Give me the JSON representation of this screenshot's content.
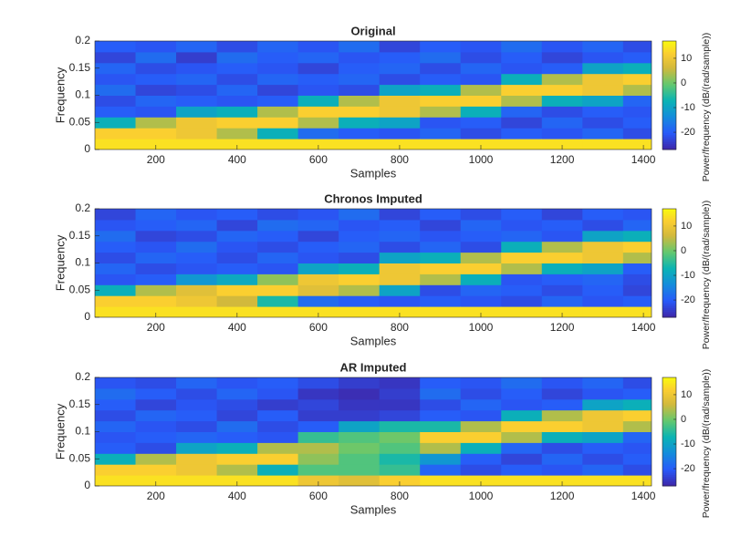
{
  "chart_data": [
    {
      "type": "heatmap",
      "title": "Original",
      "x_label": "Samples",
      "y_label": "Frequency",
      "colorbar_label": "Power/frequency (dB/(rad/sample))",
      "colormap": "parula",
      "x": [
        100,
        200,
        300,
        400,
        500,
        600,
        700,
        800,
        900,
        1000,
        1100,
        1200,
        1300,
        1400
      ],
      "y": [
        0.01,
        0.03,
        0.05,
        0.07,
        0.09,
        0.11,
        0.13,
        0.15,
        0.17,
        0.19
      ],
      "values": [
        [
          14,
          12,
          -8,
          -20,
          -22,
          -18,
          -21,
          -19,
          -23,
          -20
        ],
        [
          14,
          12,
          4,
          -21,
          -19,
          -23,
          -20,
          -22,
          -18,
          -21
        ],
        [
          14,
          10,
          10,
          -10,
          -20,
          -22,
          -19,
          -21,
          -24,
          -19
        ],
        [
          14,
          4,
          12,
          -8,
          -21,
          -19,
          -22,
          -20,
          -18,
          -22
        ],
        [
          14,
          -8,
          12,
          4,
          -20,
          -23,
          -19,
          -21,
          -20,
          -19
        ],
        [
          14,
          -18,
          4,
          12,
          -8,
          -21,
          -20,
          -23,
          -19,
          -21
        ],
        [
          14,
          -20,
          -8,
          12,
          4,
          -22,
          -19,
          -20,
          -21,
          -18
        ],
        [
          14,
          -21,
          -10,
          10,
          10,
          -10,
          -22,
          -19,
          -20,
          -23
        ],
        [
          14,
          -19,
          -21,
          4,
          12,
          -8,
          -20,
          -22,
          -18,
          -20
        ],
        [
          14,
          -22,
          -20,
          -8,
          12,
          4,
          -21,
          -19,
          -22,
          -21
        ],
        [
          14,
          -20,
          -23,
          -19,
          4,
          12,
          -8,
          -21,
          -20,
          -18
        ],
        [
          14,
          -21,
          -19,
          -22,
          -8,
          12,
          4,
          -20,
          -23,
          -21
        ],
        [
          14,
          -19,
          -22,
          -20,
          -10,
          10,
          10,
          -10,
          -21,
          -19
        ],
        [
          14,
          -22,
          -20,
          -21,
          -19,
          4,
          12,
          -8,
          -20,
          -22
        ]
      ],
      "xlim": [
        50,
        1420
      ],
      "ylim": [
        0,
        0.2
      ],
      "xticks": [
        200,
        400,
        600,
        800,
        1000,
        1200,
        1400
      ],
      "yticks": [
        0,
        0.05,
        0.1,
        0.15,
        0.2
      ],
      "clim": [
        -27,
        17
      ],
      "cticks": [
        -20,
        -10,
        0,
        10
      ]
    },
    {
      "type": "heatmap",
      "title": "Chronos Imputed",
      "x_label": "Samples",
      "y_label": "Frequency",
      "colorbar_label": "Power/frequency (dB/(rad/sample))",
      "colormap": "parula",
      "x": [
        100,
        200,
        300,
        400,
        500,
        600,
        700,
        800,
        900,
        1000,
        1100,
        1200,
        1300,
        1400
      ],
      "y": [
        0.01,
        0.03,
        0.05,
        0.07,
        0.09,
        0.11,
        0.13,
        0.15,
        0.17,
        0.19
      ],
      "values": [
        [
          14,
          12,
          -8,
          -21,
          -19,
          -22,
          -20,
          -18,
          -21,
          -23
        ],
        [
          14,
          12,
          4,
          -20,
          -22,
          -19,
          -21,
          -23,
          -20,
          -19
        ],
        [
          14,
          10,
          8,
          -12,
          -21,
          -20,
          -18,
          -22,
          -19,
          -21
        ],
        [
          14,
          6,
          12,
          -9,
          -20,
          -22,
          -21,
          -19,
          -23,
          -20
        ],
        [
          14,
          -6,
          12,
          2,
          -21,
          -19,
          -22,
          -20,
          -18,
          -22
        ],
        [
          14,
          -18,
          8,
          10,
          -10,
          -21,
          -20,
          -23,
          -19,
          -21
        ],
        [
          14,
          -20,
          4,
          12,
          -8,
          -22,
          -19,
          -20,
          -21,
          -18
        ],
        [
          14,
          -21,
          -10,
          10,
          10,
          -10,
          -22,
          -19,
          -20,
          -23
        ],
        [
          14,
          -20,
          -22,
          4,
          12,
          -8,
          -19,
          -21,
          -23,
          -20
        ],
        [
          14,
          -21,
          -19,
          -8,
          12,
          4,
          -22,
          -20,
          -19,
          -22
        ],
        [
          14,
          -22,
          -20,
          -21,
          4,
          12,
          -8,
          -19,
          -21,
          -20
        ],
        [
          14,
          -19,
          -22,
          -20,
          -8,
          12,
          4,
          -21,
          -20,
          -23
        ],
        [
          14,
          -21,
          -20,
          -19,
          -10,
          10,
          10,
          -10,
          -22,
          -20
        ],
        [
          14,
          -20,
          -23,
          -22,
          -20,
          4,
          12,
          -8,
          -19,
          -21
        ]
      ],
      "xlim": [
        50,
        1420
      ],
      "ylim": [
        0,
        0.2
      ],
      "xticks": [
        200,
        400,
        600,
        800,
        1000,
        1200,
        1400
      ],
      "yticks": [
        0,
        0.05,
        0.1,
        0.15,
        0.2
      ],
      "clim": [
        -27,
        17
      ],
      "cticks": [
        -20,
        -10,
        0,
        10
      ]
    },
    {
      "type": "heatmap",
      "title": "AR Imputed",
      "x_label": "Samples",
      "y_label": "Frequency",
      "colorbar_label": "Power/frequency (dB/(rad/sample))",
      "colormap": "parula",
      "x": [
        100,
        200,
        300,
        400,
        500,
        600,
        700,
        800,
        900,
        1000,
        1100,
        1200,
        1300,
        1400
      ],
      "y": [
        0.01,
        0.03,
        0.05,
        0.07,
        0.09,
        0.11,
        0.13,
        0.15,
        0.17,
        0.19
      ],
      "values": [
        [
          14,
          12,
          -8,
          -20,
          -21,
          -19,
          -22,
          -20,
          -18,
          -21
        ],
        [
          14,
          12,
          4,
          -22,
          -20,
          -21,
          -19,
          -23,
          -20,
          -22
        ],
        [
          14,
          10,
          10,
          -10,
          -19,
          -22,
          -20,
          -21,
          -22,
          -19
        ],
        [
          14,
          4,
          12,
          -8,
          -20,
          -18,
          -23,
          -22,
          -19,
          -21
        ],
        [
          14,
          -8,
          12,
          4,
          -21,
          -22,
          -20,
          -24,
          -21,
          -20
        ],
        [
          10,
          -2,
          2,
          4,
          -4,
          -20,
          -24,
          -23,
          -25,
          -22
        ],
        [
          8,
          -2,
          -2,
          0,
          -2,
          -10,
          -24,
          -25,
          -26,
          -24
        ],
        [
          12,
          -4,
          -6,
          -2,
          0,
          -6,
          -23,
          -25,
          -24,
          -25
        ],
        [
          14,
          -19,
          -12,
          4,
          12,
          -6,
          -20,
          -22,
          -18,
          -20
        ],
        [
          14,
          -22,
          -20,
          -8,
          12,
          4,
          -21,
          -19,
          -22,
          -21
        ],
        [
          14,
          -20,
          -23,
          -19,
          4,
          12,
          -8,
          -21,
          -20,
          -18
        ],
        [
          14,
          -21,
          -19,
          -22,
          -8,
          12,
          4,
          -20,
          -23,
          -21
        ],
        [
          14,
          -19,
          -22,
          -20,
          -10,
          10,
          10,
          -10,
          -21,
          -19
        ],
        [
          14,
          -22,
          -20,
          -21,
          -19,
          4,
          12,
          -8,
          -20,
          -22
        ]
      ],
      "xlim": [
        50,
        1420
      ],
      "ylim": [
        0,
        0.2
      ],
      "xticks": [
        200,
        400,
        600,
        800,
        1000,
        1200,
        1400
      ],
      "yticks": [
        0,
        0.05,
        0.1,
        0.15,
        0.2
      ],
      "clim": [
        -27,
        17
      ],
      "cticks": [
        -20,
        -10,
        0,
        10
      ]
    }
  ]
}
